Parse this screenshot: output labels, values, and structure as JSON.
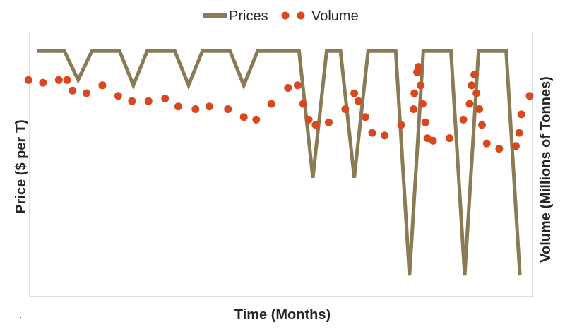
{
  "chart_data": {
    "type": "line",
    "xlabel": "Time (Months)",
    "ylabel_left": "Price ($ per T)",
    "ylabel_right": "Volume (Millions of Tonnes)",
    "legend": {
      "placement": "top-center",
      "entries": [
        "Prices",
        "Volume"
      ]
    },
    "grid": false,
    "xlim": [
      0,
      710
    ],
    "price_ylim": [
      0,
      10
    ],
    "volume_ylim": [
      0,
      10
    ],
    "series": [
      {
        "name": "Prices",
        "kind": "line",
        "color": "#8B7B55",
        "x": [
          0,
          40,
          60,
          80,
          120,
          140,
          160,
          200,
          220,
          240,
          280,
          300,
          320,
          360,
          380,
          400,
          420,
          440,
          460,
          480,
          500,
          520,
          540,
          560,
          580,
          600,
          620,
          640,
          660,
          680,
          700
        ],
        "values": [
          9.3,
          9.3,
          8.2,
          9.3,
          9.3,
          8.0,
          9.3,
          9.3,
          8.0,
          9.3,
          9.3,
          8.0,
          9.3,
          9.3,
          9.3,
          4.5,
          9.3,
          9.3,
          4.5,
          9.3,
          9.3,
          9.3,
          0.8,
          9.3,
          9.3,
          9.3,
          0.8,
          9.3,
          9.3,
          9.3,
          0.8
        ]
      },
      {
        "name": "Volume",
        "kind": "scatter",
        "color": "#D9471F",
        "x": [
          -12,
          9,
          32,
          44,
          52,
          72,
          95,
          118,
          138,
          162,
          186,
          205,
          230,
          250,
          277,
          300,
          318,
          340,
          364,
          378,
          386,
          394,
          404,
          423,
          447,
          460,
          466,
          476,
          486,
          504,
          528,
          546,
          547,
          551,
          553,
          556,
          559,
          563,
          566,
          574,
          598,
          618,
          627,
          630,
          634,
          637,
          641,
          645,
          652,
          670,
          694,
          699,
          702,
          714
        ],
        "values": [
          8.2,
          8.1,
          8.2,
          8.2,
          7.8,
          7.7,
          8.0,
          7.6,
          7.4,
          7.4,
          7.5,
          7.2,
          7.1,
          7.2,
          7.1,
          6.8,
          6.7,
          7.3,
          7.9,
          8.0,
          7.3,
          6.7,
          6.5,
          6.6,
          7.1,
          7.7,
          7.4,
          6.8,
          6.2,
          6.1,
          6.5,
          7.1,
          7.7,
          8.5,
          8.7,
          8.0,
          7.3,
          6.6,
          6.0,
          5.9,
          6.0,
          6.7,
          7.3,
          8.0,
          8.4,
          7.7,
          7.1,
          6.5,
          5.8,
          5.6,
          5.7,
          6.2,
          6.9,
          7.6
        ]
      }
    ]
  }
}
